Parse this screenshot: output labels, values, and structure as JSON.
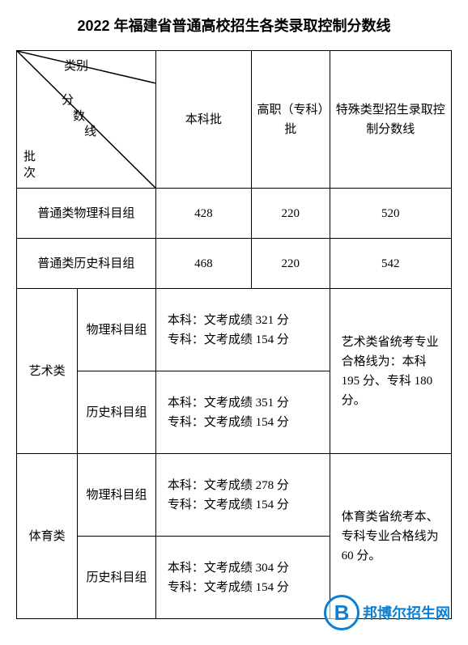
{
  "title": "2022 年福建省普通高校招生各类录取控制分数线",
  "diagonal_labels": {
    "category": "类别",
    "score1": "分",
    "score2": "数",
    "score3": "线",
    "batch1": "批",
    "batch2": "次"
  },
  "columns": {
    "undergrad": "本科批",
    "vocational": "高职（专科）批",
    "special": "特殊类型招生录取控制分数线"
  },
  "rows": {
    "physics_general": {
      "label": "普通类物理科目组",
      "undergrad": "428",
      "vocational": "220",
      "special": "520"
    },
    "history_general": {
      "label": "普通类历史科目组",
      "undergrad": "468",
      "vocational": "220",
      "special": "542"
    },
    "art": {
      "label": "艺术类",
      "physics_label": "物理科目组",
      "physics_text": "本科：文考成绩 321 分\n专科：文考成绩 154 分",
      "history_label": "历史科目组",
      "history_text": "本科：文考成绩 351 分\n专科：文考成绩 154 分",
      "note": "艺术类省统考专业合格线为：本科 195 分、专科 180 分。"
    },
    "sport": {
      "label": "体育类",
      "physics_label": "物理科目组",
      "physics_text": "本科：文考成绩 278 分\n专科：文考成绩 154 分",
      "history_label": "历史科目组",
      "history_text": "本科：文考成绩 304 分\n专科：文考成绩 154 分",
      "note": "体育类省统考本、专科专业合格线为 60 分。"
    }
  },
  "watermark": {
    "badge": "B",
    "text": "邦博尔招生网"
  },
  "style": {
    "border_color": "#000000",
    "border_width": 1.5,
    "background": "#ffffff",
    "text_color": "#000000",
    "watermark_color": "#0b7fd6",
    "title_fontsize": 18,
    "body_fontsize": 15,
    "col_widths_pct": [
      14,
      18,
      22,
      18,
      28
    ]
  }
}
